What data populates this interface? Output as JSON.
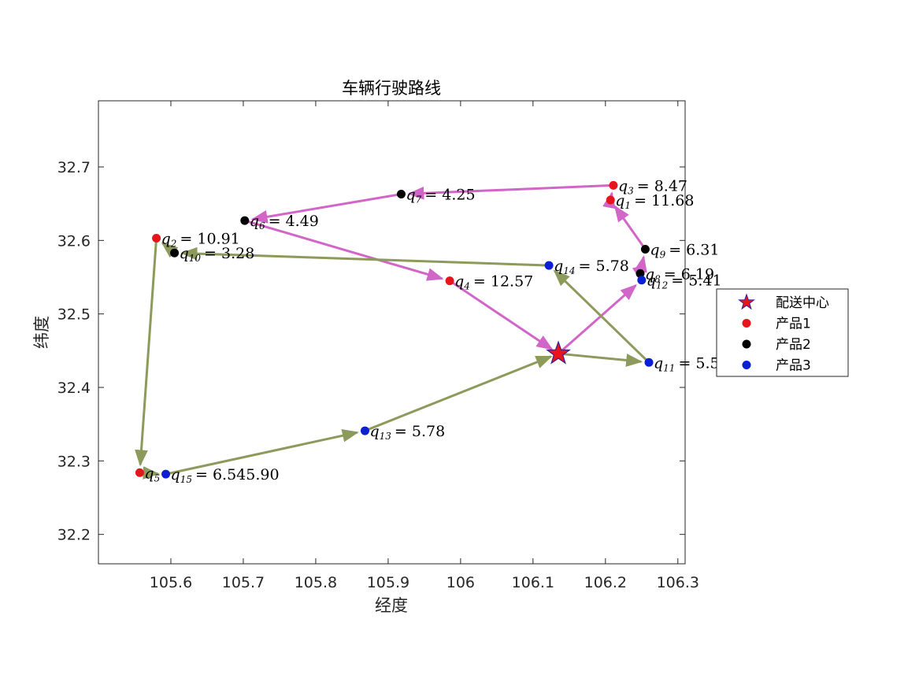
{
  "chart_data": {
    "type": "scatter",
    "title": "车辆行驶路线",
    "xlabel": "经度",
    "ylabel": "纬度",
    "xlim": [
      105.5,
      106.31
    ],
    "ylim": [
      32.16,
      32.79
    ],
    "xticks": [
      105.6,
      105.7,
      105.8,
      105.9,
      106,
      106.1,
      106.2,
      106.3
    ],
    "xtick_labels": [
      "105.6",
      "105.7",
      "105.8",
      "105.9",
      "106",
      "106.1",
      "106.2",
      "106.3"
    ],
    "yticks": [
      32.2,
      32.3,
      32.4,
      32.5,
      32.6,
      32.7
    ],
    "ytick_labels": [
      "32.2",
      "32.3",
      "32.4",
      "32.5",
      "32.6",
      "32.7"
    ],
    "grid": false,
    "legend_position": "outside-right",
    "depot": {
      "name": "配送中心",
      "x": 106.135,
      "y": 32.446,
      "color": "#e8141c",
      "edge": "#3b1f8f"
    },
    "legend": [
      {
        "label": "配送中心",
        "marker": "star",
        "color": "#e8141c"
      },
      {
        "label": "产品1",
        "marker": "dot",
        "color": "#e8141c"
      },
      {
        "label": "产品2",
        "marker": "dot",
        "color": "#000000"
      },
      {
        "label": "产品3",
        "marker": "dot",
        "color": "#0a1fd6"
      }
    ],
    "points": [
      {
        "id": "1",
        "x": 106.207,
        "y": 32.655,
        "product": 1,
        "color": "#e8141c",
        "label": "= 11.68"
      },
      {
        "id": "2",
        "x": 105.58,
        "y": 32.603,
        "product": 1,
        "color": "#e8141c",
        "label": "= 10.91"
      },
      {
        "id": "3",
        "x": 106.211,
        "y": 32.675,
        "product": 1,
        "color": "#e8141c",
        "label": "= 8.47"
      },
      {
        "id": "4",
        "x": 105.985,
        "y": 32.545,
        "product": 1,
        "color": "#e8141c",
        "label": "= 12.57"
      },
      {
        "id": "5",
        "x": 105.557,
        "y": 32.284,
        "product": 1,
        "color": "#e8141c",
        "label": ""
      },
      {
        "id": "6",
        "x": 105.702,
        "y": 32.627,
        "product": 2,
        "color": "#000000",
        "label": "= 4.49"
      },
      {
        "id": "7",
        "x": 105.918,
        "y": 32.663,
        "product": 2,
        "color": "#000000",
        "label": "= 4.25"
      },
      {
        "id": "8",
        "x": 106.248,
        "y": 32.555,
        "product": 2,
        "color": "#000000",
        "label": "= 6.19"
      },
      {
        "id": "9",
        "x": 106.255,
        "y": 32.588,
        "product": 2,
        "color": "#000000",
        "label": "= 6.31"
      },
      {
        "id": "10",
        "x": 105.605,
        "y": 32.583,
        "product": 2,
        "color": "#000000",
        "label": "= 3.28"
      },
      {
        "id": "11",
        "x": 106.26,
        "y": 32.434,
        "product": 3,
        "color": "#0a1fd6",
        "label": "= 5.5"
      },
      {
        "id": "12",
        "x": 106.25,
        "y": 32.546,
        "product": 3,
        "color": "#0a1fd6",
        "label": "= 5.41"
      },
      {
        "id": "13",
        "x": 105.868,
        "y": 32.341,
        "product": 3,
        "color": "#0a1fd6",
        "label": "= 5.78"
      },
      {
        "id": "14",
        "x": 106.122,
        "y": 32.566,
        "product": 3,
        "color": "#0a1fd6",
        "label": "= 5.78"
      },
      {
        "id": "15",
        "x": 105.593,
        "y": 32.282,
        "product": 3,
        "color": "#0a1fd6",
        "label": "= 6.545.90"
      }
    ],
    "series": [
      {
        "color": "#d166c8",
        "route": [
          "depot",
          "12",
          "8",
          "9",
          "1",
          "3",
          "7",
          "6",
          "4",
          "depot"
        ]
      },
      {
        "color": "#8c9a5b",
        "route": [
          "depot",
          "11",
          "14",
          "10",
          "2",
          "5",
          "15",
          "13",
          "depot"
        ]
      }
    ]
  }
}
